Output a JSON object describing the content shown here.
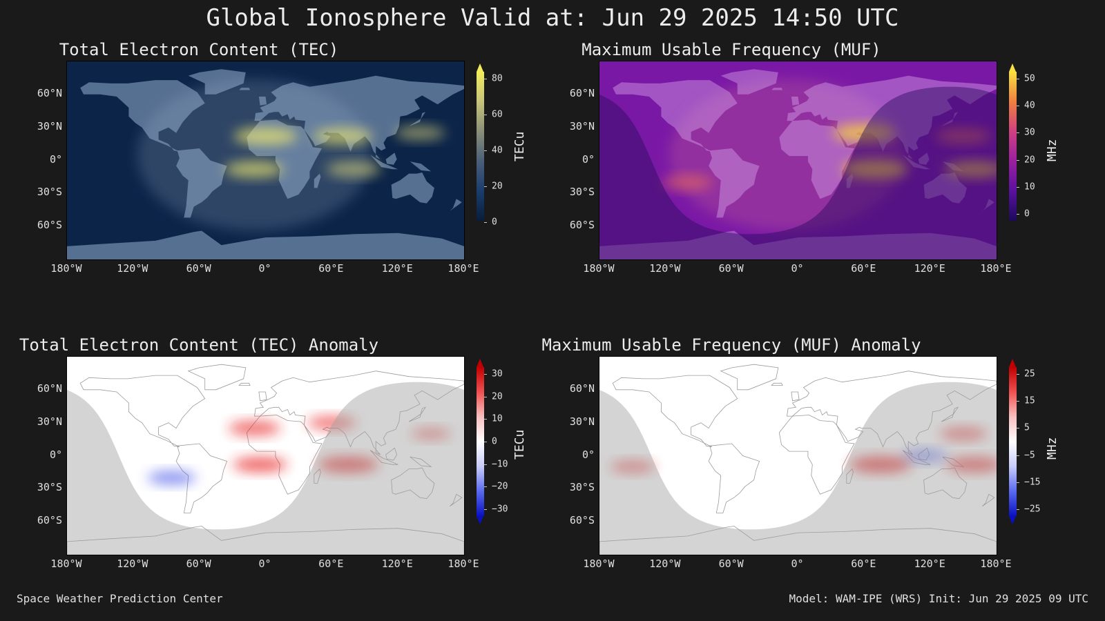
{
  "title": "Global Ionosphere Valid at: Jun 29 2025 14:50 UTC",
  "footer": {
    "left": "Space Weather Prediction Center",
    "right": "Model: WAM-IPE (WRS) Init: Jun 29 2025 09 UTC"
  },
  "panels": [
    {
      "title": "Total Electron Content (TEC)",
      "unit": "TECu",
      "colorbar": [
        "#081d3a",
        "#1a3d6e",
        "#4a5f7a",
        "#8a8f78",
        "#c8c47a",
        "#f2ec5a"
      ],
      "ticks": [
        "80",
        "60",
        "40",
        "20",
        "0"
      ]
    },
    {
      "title": "Maximum Usable Frequency (MUF)",
      "unit": "MHz",
      "colorbar": [
        "#1a0a5a",
        "#5a10a0",
        "#9a20a0",
        "#d04080",
        "#f08040",
        "#f8e040"
      ],
      "ticks": [
        "50",
        "40",
        "30",
        "20",
        "10",
        "0"
      ]
    },
    {
      "title": "Total Electron Content (TEC) Anomaly",
      "unit": "TECu",
      "colorbar": [
        "#0a10c0",
        "#5a6af0",
        "#c8ccf8",
        "#ffffff",
        "#f8c0c0",
        "#f05050",
        "#c00000"
      ],
      "ticks": [
        "30",
        "20",
        "10",
        "0",
        "−10",
        "−20",
        "−30"
      ]
    },
    {
      "title": "Maximum Usable Frequency (MUF) Anomaly",
      "unit": "MHz",
      "colorbar": [
        "#0a10c0",
        "#5a6af0",
        "#c8ccf8",
        "#ffffff",
        "#f8c0c0",
        "#f05050",
        "#c00000"
      ],
      "ticks": [
        "25",
        "15",
        "5",
        "−5",
        "−15",
        "−25"
      ]
    }
  ],
  "axes": {
    "lat_labels": [
      "60°N",
      "30°N",
      "0°",
      "30°S",
      "60°S"
    ],
    "lon_labels": [
      "180°W",
      "120°W",
      "60°W",
      "0°",
      "60°E",
      "120°E",
      "180°E"
    ]
  },
  "chart_data": [
    {
      "type": "heatmap",
      "title": "Total Electron Content (TEC)",
      "colorbar_label": "TECu",
      "colorbar_range": [
        0,
        80
      ],
      "xlim": [
        -180,
        180
      ],
      "ylim": [
        -90,
        90
      ],
      "x_ticks": [
        -180,
        -120,
        -60,
        0,
        60,
        120,
        180
      ],
      "y_ticks": [
        60,
        30,
        0,
        -30,
        -60
      ],
      "features": [
        {
          "lon": 0,
          "lat": 22,
          "value": 75
        },
        {
          "lon": 70,
          "lat": 22,
          "value": 65
        },
        {
          "lon": -10,
          "lat": -8,
          "value": 65
        },
        {
          "lon": 80,
          "lat": -8,
          "value": 55
        },
        {
          "lon": 140,
          "lat": 25,
          "value": 45
        }
      ]
    },
    {
      "type": "heatmap",
      "title": "Maximum Usable Frequency (MUF)",
      "colorbar_label": "MHz",
      "colorbar_range": [
        0,
        50
      ],
      "xlim": [
        -180,
        180
      ],
      "ylim": [
        -90,
        90
      ],
      "x_ticks": [
        -180,
        -120,
        -60,
        0,
        60,
        120,
        180
      ],
      "y_ticks": [
        60,
        30,
        0,
        -30,
        -60
      ],
      "features": [
        {
          "lon": 60,
          "lat": 25,
          "value": 45
        },
        {
          "lon": 70,
          "lat": -8,
          "value": 50
        },
        {
          "lon": 150,
          "lat": 22,
          "value": 35
        },
        {
          "lon": 160,
          "lat": -8,
          "value": 42
        },
        {
          "lon": -100,
          "lat": -20,
          "value": 28
        }
      ]
    },
    {
      "type": "heatmap",
      "title": "Total Electron Content (TEC) Anomaly",
      "colorbar_label": "TECu",
      "colorbar_range": [
        -30,
        30
      ],
      "xlim": [
        -180,
        180
      ],
      "ylim": [
        -90,
        90
      ],
      "x_ticks": [
        -180,
        -120,
        -60,
        0,
        60,
        120,
        180
      ],
      "y_ticks": [
        60,
        30,
        0,
        -30,
        -60
      ],
      "features": [
        {
          "lon": -10,
          "lat": 25,
          "value": 18
        },
        {
          "lon": 60,
          "lat": 30,
          "value": 15
        },
        {
          "lon": 75,
          "lat": -8,
          "value": 25
        },
        {
          "lon": -5,
          "lat": -8,
          "value": 20
        },
        {
          "lon": -85,
          "lat": -20,
          "value": -15
        },
        {
          "lon": 150,
          "lat": 20,
          "value": 8
        }
      ]
    },
    {
      "type": "heatmap",
      "title": "Maximum Usable Frequency (MUF) Anomaly",
      "colorbar_label": "MHz",
      "colorbar_range": [
        -25,
        25
      ],
      "xlim": [
        -180,
        180
      ],
      "ylim": [
        -90,
        90
      ],
      "x_ticks": [
        -180,
        -120,
        -60,
        0,
        60,
        120,
        180
      ],
      "y_ticks": [
        60,
        30,
        0,
        -30,
        -60
      ],
      "features": [
        {
          "lon": 75,
          "lat": -8,
          "value": 22
        },
        {
          "lon": 160,
          "lat": -8,
          "value": 18
        },
        {
          "lon": 150,
          "lat": 20,
          "value": 12
        },
        {
          "lon": 115,
          "lat": 0,
          "value": -10
        },
        {
          "lon": -150,
          "lat": -10,
          "value": 10
        }
      ]
    }
  ]
}
